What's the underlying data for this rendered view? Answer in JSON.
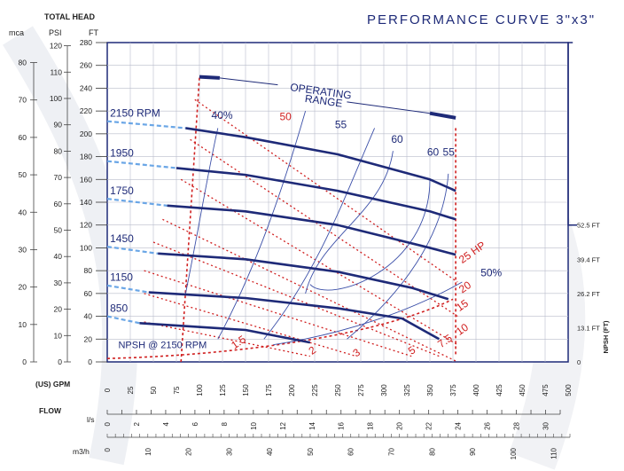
{
  "title": "PERFORMANCE CURVE 3\"x3\"",
  "axes": {
    "total_head_label": "TOTAL HEAD",
    "mca_label": "mca",
    "psi_label": "PSI",
    "ft_label": "FT",
    "usgpm_label": "(US) GPM",
    "flow_label": "FLOW",
    "ls_label": "l/s",
    "m3h_label": "m3/h",
    "npsh_label": "NPSH (FT)"
  },
  "chart_data": {
    "type": "line",
    "title": "PERFORMANCE CURVE 3\"x3\"",
    "x_gpm_ticks": [
      0,
      25,
      50,
      75,
      100,
      125,
      150,
      175,
      200,
      225,
      250,
      275,
      300,
      325,
      350,
      375,
      400,
      425,
      450,
      475,
      500
    ],
    "xlim_gpm": [
      0,
      500
    ],
    "ft_ticks": [
      0,
      20,
      40,
      60,
      80,
      100,
      120,
      140,
      160,
      180,
      200,
      220,
      240,
      260,
      280
    ],
    "ylim_ft": [
      0,
      280
    ],
    "psi_ticks": [
      0,
      10,
      20,
      30,
      40,
      50,
      60,
      70,
      80,
      90,
      100,
      110,
      120
    ],
    "mca_ticks": [
      0,
      10,
      20,
      30,
      40,
      50,
      60,
      70,
      80
    ],
    "ls_ticks": [
      0,
      2,
      4,
      6,
      8,
      10,
      12,
      14,
      16,
      18,
      20,
      22,
      24,
      26,
      28,
      30
    ],
    "m3h_ticks": [
      0,
      10,
      20,
      30,
      40,
      50,
      60,
      70,
      80,
      90,
      100,
      110
    ],
    "npsh_ticks": [
      "0",
      "13.1 FT",
      "26.2 FT",
      "39.4 FT",
      "52.5 FT"
    ],
    "speed_curves": [
      {
        "name": "2150 RPM",
        "x": [
          85,
          150,
          250,
          350,
          378
        ],
        "y": [
          205,
          197,
          182,
          160,
          150
        ]
      },
      {
        "name": "1950",
        "x": [
          75,
          150,
          250,
          350,
          378
        ],
        "y": [
          170,
          164,
          150,
          132,
          125
        ]
      },
      {
        "name": "1750",
        "x": [
          65,
          150,
          250,
          350,
          378
        ],
        "y": [
          137,
          132,
          120,
          100,
          94
        ]
      },
      {
        "name": "1450",
        "x": [
          55,
          150,
          250,
          330,
          370
        ],
        "y": [
          95,
          90,
          79,
          65,
          55
        ]
      },
      {
        "name": "1150",
        "x": [
          45,
          150,
          250,
          320,
          360
        ],
        "y": [
          61,
          56,
          47,
          38,
          20
        ]
      },
      {
        "name": "850",
        "x": [
          35,
          150,
          220
        ],
        "y": [
          34,
          28,
          17
        ]
      }
    ],
    "efficiency_labels": [
      "40%",
      "50",
      "55",
      "60",
      "60",
      "55",
      "50%"
    ],
    "hp_labels": [
      "25 HP",
      "20",
      "15",
      "10",
      "7.5",
      "5",
      "3",
      "2",
      "1.5"
    ],
    "npsh_label": "NPSH @ 2150 RPM",
    "annotation": "OPERATING RANGE"
  }
}
